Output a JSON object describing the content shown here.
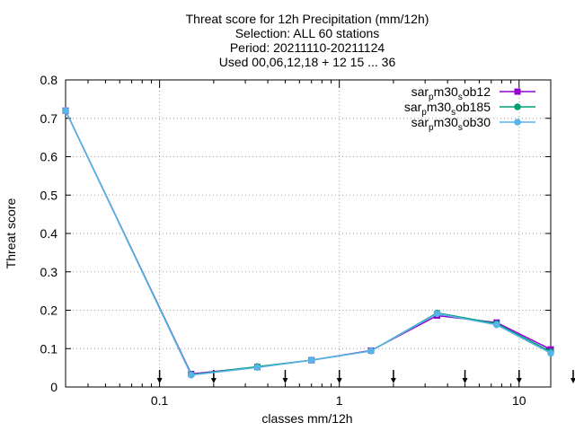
{
  "chart_data": {
    "type": "line",
    "title_lines": [
      "Threat score  for 12h Precipitation (mm/12h)",
      "Selection: ALL     60 stations",
      "Period: 20211110-20211124",
      "Used 00,06,12,18 + 12 15 ... 36"
    ],
    "xlabel": "classes mm/12h",
    "ylabel": "Threat score",
    "x_scale": "log",
    "xlim": [
      0.03,
      15
    ],
    "ylim": [
      0,
      0.8
    ],
    "x_ticks": [
      {
        "value": 0.1,
        "label": "0.1"
      },
      {
        "value": 1,
        "label": "1"
      },
      {
        "value": 10,
        "label": "10"
      }
    ],
    "y_ticks": [
      {
        "value": 0,
        "label": "0"
      },
      {
        "value": 0.1,
        "label": "0.1"
      },
      {
        "value": 0.2,
        "label": "0.2"
      },
      {
        "value": 0.3,
        "label": "0.3"
      },
      {
        "value": 0.4,
        "label": "0.4"
      },
      {
        "value": 0.5,
        "label": "0.5"
      },
      {
        "value": 0.6,
        "label": "0.6"
      },
      {
        "value": 0.7,
        "label": "0.7"
      },
      {
        "value": 0.8,
        "label": "0.8"
      }
    ],
    "grid": true,
    "legend_position": "top-right",
    "x": [
      0.03,
      0.15,
      0.35,
      0.7,
      1.5,
      3.5,
      7.5,
      15
    ],
    "series": [
      {
        "name": "sar_pm30_sob12",
        "name_parts": [
          "sar",
          "p",
          "m30",
          "s",
          "ob12"
        ],
        "color": "#9400d3",
        "marker": "square",
        "values": [
          0.72,
          0.034,
          0.052,
          0.07,
          0.095,
          0.186,
          0.168,
          0.098
        ]
      },
      {
        "name": "sar_pm30_sob185",
        "name_parts": [
          "sar",
          "p",
          "m30",
          "s",
          "ob185"
        ],
        "color": "#009e73",
        "marker": "circle",
        "values": [
          0.72,
          0.032,
          0.053,
          0.07,
          0.094,
          0.193,
          0.165,
          0.092
        ]
      },
      {
        "name": "sar_pm30_sob30",
        "name_parts": [
          "sar",
          "p",
          "m30",
          "s",
          "ob30"
        ],
        "color": "#56b4e9",
        "marker": "circle",
        "values": [
          0.72,
          0.031,
          0.051,
          0.07,
          0.094,
          0.191,
          0.162,
          0.088
        ]
      }
    ],
    "threshold_arrows": [
      0.1,
      0.2,
      0.5,
      1,
      2,
      5,
      10,
      20
    ]
  }
}
